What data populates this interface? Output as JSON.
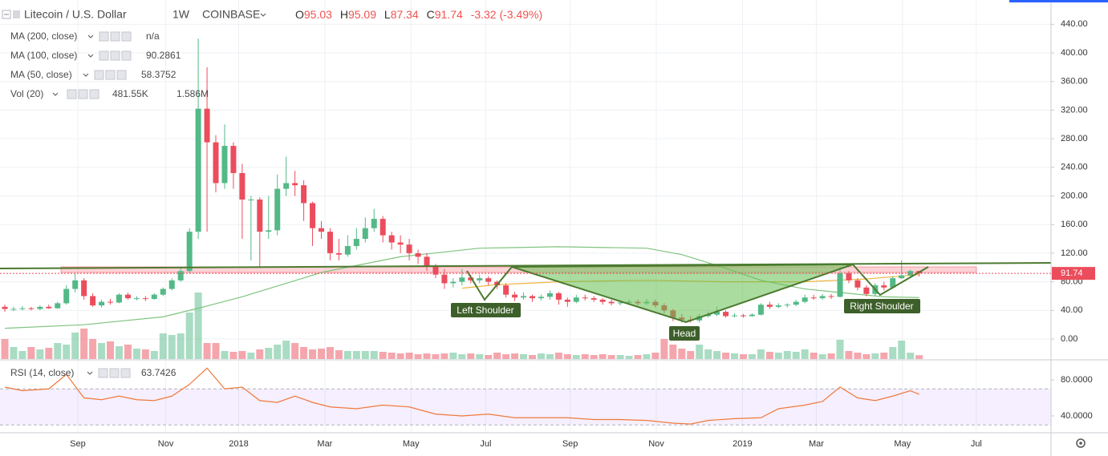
{
  "header": {
    "symbol": "Litecoin / U.S. Dollar",
    "interval": "1W",
    "exchange": "COINBASE",
    "ohlc": [
      "O",
      "H",
      "L",
      "C"
    ],
    "change": "-3.32 (-3.49%)"
  },
  "chart_data": {
    "type": "candlestick",
    "up_color": "#53b987",
    "down_color": "#eb4d5c",
    "xlim": [
      -0.55,
      119
    ],
    "xticks": [
      {
        "value": 8.3,
        "label": "Sep"
      },
      {
        "value": 18.3,
        "label": "Nov"
      },
      {
        "value": 26.6,
        "label": "2018"
      },
      {
        "value": 36.4,
        "label": "Mar"
      },
      {
        "value": 46.2,
        "label": "May"
      },
      {
        "value": 54.7,
        "label": "Jul"
      },
      {
        "value": 64.3,
        "label": "Sep"
      },
      {
        "value": 74.1,
        "label": "Nov"
      },
      {
        "value": 83.9,
        "label": "2019"
      },
      {
        "value": 92.3,
        "label": "Mar"
      },
      {
        "value": 102.1,
        "label": "May"
      },
      {
        "value": 110.5,
        "label": "Jul"
      }
    ],
    "ylim": [
      -28,
      474
    ],
    "yticks": [
      {
        "value": 0,
        "label": "0.00"
      },
      {
        "value": 40,
        "label": "40.00"
      },
      {
        "value": 80,
        "label": "80.00"
      },
      {
        "value": 120,
        "label": "120.00"
      },
      {
        "value": 160,
        "label": "160.00"
      },
      {
        "value": 200,
        "label": "200.00"
      },
      {
        "value": 240,
        "label": "240.00"
      },
      {
        "value": 280,
        "label": "280.00"
      },
      {
        "value": 320,
        "label": "320.00"
      },
      {
        "value": 360,
        "label": "360.00"
      },
      {
        "value": 400,
        "label": "400.00"
      },
      {
        "value": 440,
        "label": "440.00"
      }
    ],
    "grid": true,
    "candles": [
      [
        45,
        48,
        38,
        42
      ],
      [
        42,
        45,
        39,
        42
      ],
      [
        42,
        46,
        40,
        43
      ],
      [
        43,
        45,
        40,
        42
      ],
      [
        42,
        47,
        40,
        45
      ],
      [
        45,
        48,
        42,
        43
      ],
      [
        43,
        52,
        42,
        50
      ],
      [
        50,
        75,
        48,
        70
      ],
      [
        70,
        92,
        65,
        82
      ],
      [
        82,
        85,
        55,
        60
      ],
      [
        60,
        64,
        45,
        47
      ],
      [
        47,
        55,
        44,
        52
      ],
      [
        52,
        56,
        48,
        51
      ],
      [
        51,
        64,
        50,
        62
      ],
      [
        62,
        65,
        55,
        57
      ],
      [
        57,
        60,
        54,
        57
      ],
      [
        57,
        60,
        53,
        56
      ],
      [
        56,
        64,
        55,
        62
      ],
      [
        62,
        72,
        60,
        70
      ],
      [
        70,
        85,
        68,
        82
      ],
      [
        82,
        100,
        80,
        95
      ],
      [
        95,
        155,
        92,
        150
      ],
      [
        150,
        420,
        140,
        322
      ],
      [
        322,
        380,
        150,
        275
      ],
      [
        275,
        285,
        205,
        218
      ],
      [
        218,
        300,
        210,
        270
      ],
      [
        270,
        275,
        210,
        232
      ],
      [
        232,
        245,
        140,
        195
      ],
      [
        195,
        200,
        110,
        195
      ],
      [
        195,
        198,
        100,
        150
      ],
      [
        150,
        200,
        140,
        152
      ],
      [
        152,
        230,
        145,
        210
      ],
      [
        210,
        255,
        200,
        218
      ],
      [
        218,
        235,
        200,
        215
      ],
      [
        215,
        222,
        165,
        190
      ],
      [
        190,
        192,
        130,
        155
      ],
      [
        155,
        165,
        140,
        150
      ],
      [
        150,
        155,
        110,
        120
      ],
      [
        120,
        140,
        110,
        118
      ],
      [
        118,
        145,
        115,
        130
      ],
      [
        130,
        155,
        125,
        140
      ],
      [
        140,
        170,
        135,
        155
      ],
      [
        155,
        182,
        150,
        168
      ],
      [
        168,
        172,
        135,
        145
      ],
      [
        145,
        150,
        125,
        135
      ],
      [
        135,
        145,
        120,
        132
      ],
      [
        132,
        140,
        110,
        120
      ],
      [
        120,
        125,
        105,
        115
      ],
      [
        115,
        120,
        95,
        102
      ],
      [
        102,
        105,
        85,
        90
      ],
      [
        90,
        98,
        70,
        78
      ],
      [
        78,
        85,
        72,
        80
      ],
      [
        80,
        98,
        75,
        86
      ],
      [
        86,
        90,
        78,
        82
      ],
      [
        82,
        90,
        78,
        85
      ],
      [
        85,
        88,
        75,
        80
      ],
      [
        80,
        82,
        70,
        75
      ],
      [
        75,
        78,
        58,
        62
      ],
      [
        62,
        66,
        53,
        58
      ],
      [
        58,
        65,
        55,
        60
      ],
      [
        60,
        62,
        52,
        57
      ],
      [
        57,
        62,
        54,
        59
      ],
      [
        59,
        68,
        55,
        64
      ],
      [
        64,
        66,
        48,
        55
      ],
      [
        55,
        58,
        45,
        52
      ],
      [
        52,
        62,
        50,
        58
      ],
      [
        58,
        62,
        54,
        57
      ],
      [
        57,
        60,
        52,
        55
      ],
      [
        55,
        57,
        48,
        52
      ],
      [
        52,
        55,
        47,
        50
      ],
      [
        50,
        53,
        47,
        51
      ],
      [
        51,
        55,
        48,
        52
      ],
      [
        52,
        55,
        47,
        50
      ],
      [
        50,
        56,
        48,
        52
      ],
      [
        52,
        55,
        44,
        47
      ],
      [
        47,
        50,
        36,
        40
      ],
      [
        40,
        42,
        25,
        30
      ],
      [
        30,
        35,
        23,
        27
      ],
      [
        27,
        32,
        23,
        26
      ],
      [
        26,
        35,
        23,
        32
      ],
      [
        32,
        38,
        30,
        34
      ],
      [
        34,
        45,
        32,
        38
      ],
      [
        38,
        40,
        30,
        32
      ],
      [
        32,
        36,
        30,
        33
      ],
      [
        33,
        35,
        30,
        32
      ],
      [
        32,
        36,
        31,
        34
      ],
      [
        34,
        50,
        33,
        48
      ],
      [
        48,
        52,
        42,
        45
      ],
      [
        45,
        50,
        43,
        47
      ],
      [
        47,
        50,
        44,
        48
      ],
      [
        48,
        55,
        46,
        52
      ],
      [
        52,
        62,
        50,
        58
      ],
      [
        58,
        62,
        55,
        57
      ],
      [
        57,
        63,
        55,
        60
      ],
      [
        60,
        63,
        56,
        59
      ],
      [
        59,
        100,
        58,
        92
      ],
      [
        92,
        95,
        78,
        82
      ],
      [
        82,
        85,
        68,
        72
      ],
      [
        72,
        75,
        60,
        63
      ],
      [
        63,
        78,
        60,
        75
      ],
      [
        75,
        80,
        68,
        72
      ],
      [
        72,
        88,
        70,
        85
      ],
      [
        85,
        110,
        84,
        89
      ],
      [
        89,
        97,
        85,
        95
      ],
      [
        95.03,
        95.09,
        87.34,
        91.74
      ]
    ],
    "series": [
      {
        "name": "MA (200, close)",
        "last": "n/a",
        "color": "#e35d6a",
        "x": [],
        "values": []
      },
      {
        "name": "MA (100, close)",
        "last": "90.2861",
        "color": "#f0b43c",
        "x": [
          52,
          56,
          63,
          73,
          82,
          91,
          98,
          104
        ],
        "values": [
          71,
          76,
          80,
          82,
          80,
          80,
          84,
          90
        ]
      },
      {
        "name": "MA (50, close)",
        "last": "58.3752",
        "color": "#7fc47f",
        "x": [
          0,
          9,
          18,
          22,
          27,
          36,
          45,
          54,
          63,
          73,
          77,
          82,
          86,
          91,
          95,
          100,
          104
        ],
        "values": [
          15,
          20,
          31,
          43,
          59,
          93,
          115,
          127,
          129,
          127,
          118,
          99,
          82,
          70,
          65,
          59,
          58
        ]
      }
    ],
    "volume": {
      "name": "Vol (20)",
      "last": [
        "481.55K",
        "1.586M"
      ],
      "last_colors": [
        "#e35d6a",
        "#e8a13a"
      ],
      "values": [
        2.5,
        1.5,
        1.0,
        1.5,
        1.2,
        1.4,
        2.0,
        1.8,
        3.3,
        3.8,
        2.5,
        2.0,
        2.2,
        1.6,
        1.8,
        1.3,
        1.2,
        1.0,
        3.2,
        3.0,
        3.2,
        5.8,
        8.3,
        2.0,
        2.0,
        1.0,
        0.9,
        1.0,
        0.8,
        1.2,
        1.4,
        1.8,
        2.3,
        2.0,
        1.5,
        1.2,
        1.3,
        1.5,
        1.1,
        1.0,
        1.0,
        1.0,
        1.0,
        0.9,
        0.8,
        0.7,
        0.8,
        0.6,
        0.7,
        0.6,
        0.7,
        0.8,
        0.6,
        0.7,
        0.6,
        0.5,
        0.8,
        0.6,
        0.7,
        0.6,
        0.5,
        0.7,
        0.6,
        0.8,
        0.6,
        0.5,
        0.6,
        0.5,
        0.6,
        0.5,
        0.5,
        0.4,
        0.5,
        0.6,
        0.8,
        2.5,
        1.8,
        1.3,
        1.0,
        1.8,
        1.2,
        1.0,
        0.8,
        0.7,
        0.6,
        0.6,
        1.2,
        0.9,
        0.8,
        1.0,
        0.9,
        1.2,
        0.8,
        0.6,
        0.7,
        2.4,
        1.0,
        0.8,
        0.6,
        0.7,
        0.8,
        1.5,
        2.3,
        0.8,
        0.48
      ]
    },
    "rsi": {
      "name": "RSI (14, close)",
      "last": "63.7426",
      "color": "#f0793a",
      "ylim": [
        21.3,
        99.6
      ],
      "yticks": [
        {
          "value": 80,
          "label": "80.0000"
        },
        {
          "value": 40,
          "label": "40.0000"
        }
      ],
      "band": [
        70,
        30
      ],
      "x": [
        0,
        2,
        5,
        7,
        9,
        11,
        13,
        15,
        17,
        19,
        21,
        23,
        25,
        27,
        29,
        31,
        33,
        35,
        37,
        40,
        43,
        46,
        49,
        52,
        55,
        58,
        61,
        64,
        67,
        70,
        73,
        76,
        78,
        80,
        83,
        86,
        88,
        91,
        93,
        95,
        97,
        99,
        101,
        103,
        104
      ],
      "values": [
        72,
        68,
        70,
        86,
        60,
        58,
        62,
        58,
        57,
        62,
        75,
        93,
        70,
        72,
        57,
        55,
        62,
        55,
        50,
        48,
        52,
        50,
        42,
        40,
        42,
        38,
        38,
        38,
        36,
        36,
        35,
        32,
        31,
        35,
        37,
        38,
        48,
        52,
        56,
        72,
        60,
        57,
        62,
        68,
        64
      ]
    },
    "annotations": [
      "Left Shoulder",
      "Head",
      "Right Shoulder"
    ]
  }
}
